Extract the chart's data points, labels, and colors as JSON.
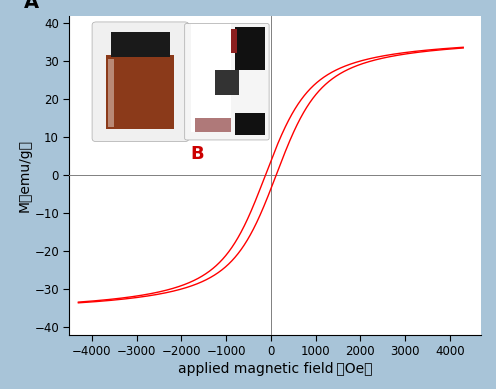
{
  "title": "",
  "xlabel": "applied magnetic field （Oe）",
  "ylabel": "M（emu/g）",
  "xlim": [
    -4500,
    4700
  ],
  "ylim": [
    -42,
    42
  ],
  "xticks": [
    -4000,
    -3000,
    -2000,
    -1000,
    0,
    1000,
    2000,
    3000,
    4000
  ],
  "yticks": [
    -40,
    -30,
    -20,
    -10,
    0,
    10,
    20,
    30,
    40
  ],
  "curve_color": "#ff0000",
  "background_color": "#ffffff",
  "outer_background": "#a8c4d8",
  "label_A": "A",
  "label_B": "B",
  "Ms": 37.0,
  "a_param": 400,
  "Hc": 120
}
